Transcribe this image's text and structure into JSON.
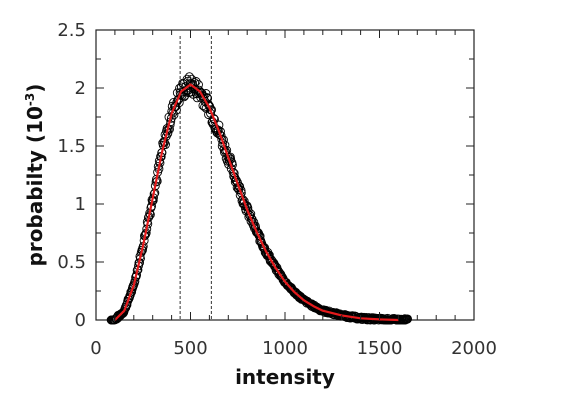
{
  "chart_data": {
    "type": "scatter",
    "xlabel": "intensity",
    "ylabel_main": "probabilty (10",
    "ylabel_sup": "-3",
    "ylabel_close": ")",
    "xlim": [
      0,
      2000
    ],
    "ylim": [
      0,
      2.5
    ],
    "x_ticks": [
      0,
      500,
      1000,
      1500,
      2000
    ],
    "x_tick_labels": [
      "0",
      "500",
      "1000",
      "1500",
      "2000"
    ],
    "x_minor_step": 100,
    "y_ticks": [
      0,
      0.5,
      1,
      1.5,
      2,
      2.5
    ],
    "y_tick_labels": [
      "0",
      "0.5",
      "1",
      "1.5",
      "2",
      "2.5"
    ],
    "y_minor_step": 0.25,
    "grid": false,
    "vertical_markers": [
      445,
      610
    ],
    "series": [
      {
        "kind": "scatter-open-circles",
        "color": "#000000",
        "x_range": [
          80,
          1650
        ],
        "x_step": 3,
        "noise_amplitude": 0.08
      },
      {
        "kind": "fit-line",
        "color": "#e41a1c",
        "peak_x": 490,
        "peak_y": 2.03,
        "points": [
          [
            100,
            0.0
          ],
          [
            150,
            0.08
          ],
          [
            200,
            0.3
          ],
          [
            250,
            0.65
          ],
          [
            300,
            1.05
          ],
          [
            350,
            1.45
          ],
          [
            400,
            1.78
          ],
          [
            450,
            1.97
          ],
          [
            500,
            2.03
          ],
          [
            550,
            1.97
          ],
          [
            600,
            1.83
          ],
          [
            650,
            1.63
          ],
          [
            700,
            1.4
          ],
          [
            750,
            1.17
          ],
          [
            800,
            0.95
          ],
          [
            850,
            0.76
          ],
          [
            900,
            0.59
          ],
          [
            950,
            0.45
          ],
          [
            1000,
            0.33
          ],
          [
            1050,
            0.24
          ],
          [
            1100,
            0.17
          ],
          [
            1150,
            0.12
          ],
          [
            1200,
            0.08
          ],
          [
            1300,
            0.04
          ],
          [
            1400,
            0.015
          ],
          [
            1500,
            0.005
          ],
          [
            1600,
            0.0
          ]
        ]
      }
    ]
  }
}
